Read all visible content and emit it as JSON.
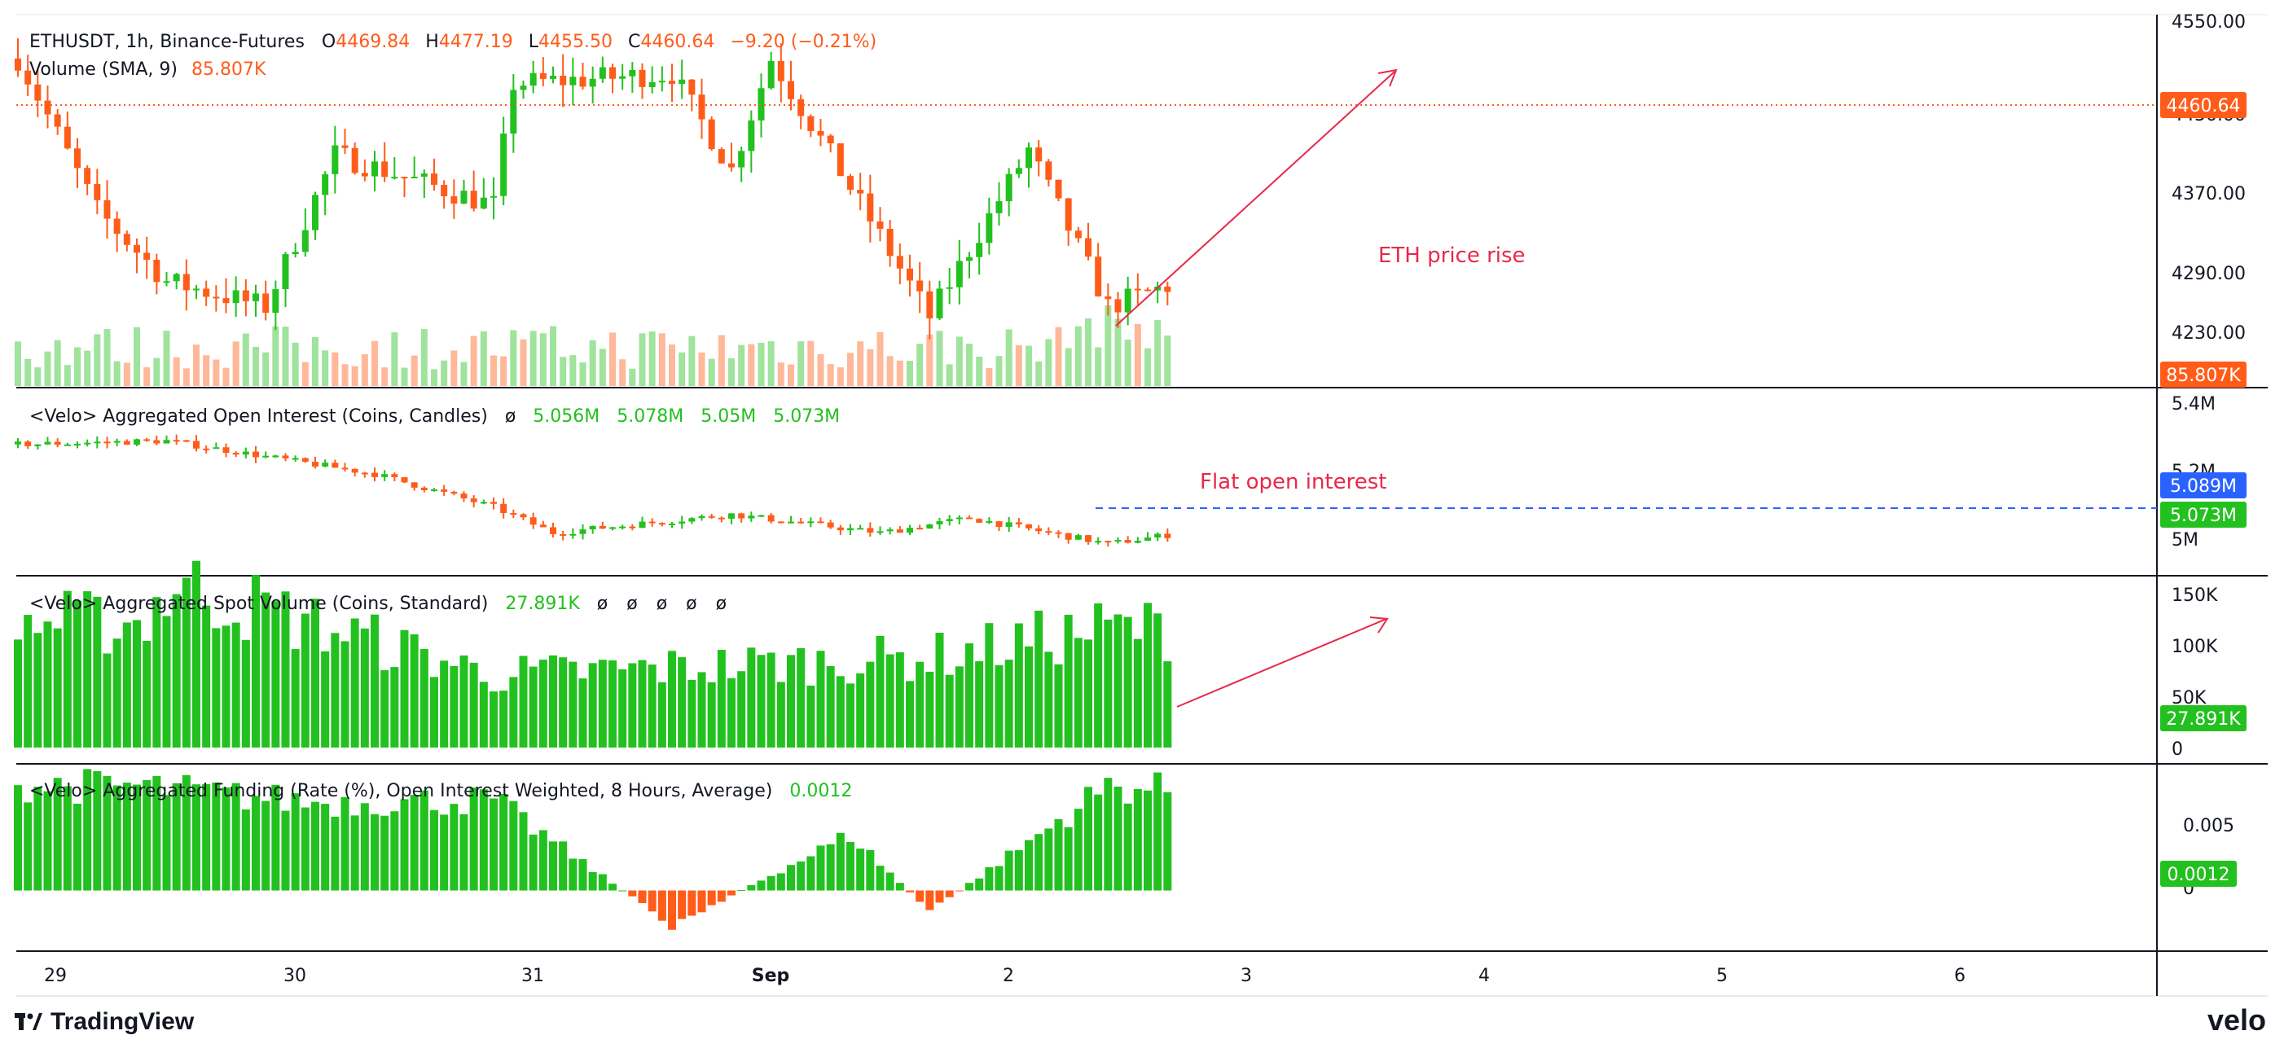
{
  "colors": {
    "up": "#22c11f",
    "down": "#ff5c1a",
    "annotation": "#e8294a",
    "grid": "#131722",
    "text": "#131722",
    "axis_text": "#131722",
    "oi_line_label": "#2962ff"
  },
  "header": {
    "symbol": "ETHUSDT, 1h, Binance-Futures",
    "open_label": "O",
    "open": "4469.84",
    "high_label": "H",
    "high": "4477.19",
    "low_label": "L",
    "low": "4455.50",
    "close_label": "C",
    "close": "4460.64",
    "change": "−9.20 (−0.21%)",
    "volume_label": "Volume (SMA, 9)",
    "volume_value": "85.807K"
  },
  "price_axis": {
    "ticks": [
      "4550.00",
      "4450.00",
      "4370.00",
      "4290.00",
      "4230.00"
    ],
    "current_price_tag": "4460.64",
    "volume_tag": "85.807K"
  },
  "panes": {
    "open_interest": {
      "title": "<Velo> Aggregated Open Interest (Coins, Candles)",
      "empty_marker": "ø",
      "values": [
        "5.056M",
        "5.078M",
        "5.05M",
        "5.073M"
      ],
      "axis_ticks": [
        "5.4M",
        "5.2M",
        "5M"
      ],
      "tag_line": "5.089M",
      "tag_current": "5.073M",
      "annotation": "Flat open interest"
    },
    "spot_volume": {
      "title": "<Velo> Aggregated Spot Volume (Coins, Standard)",
      "value": "27.891K",
      "empties": [
        "ø",
        "ø",
        "ø",
        "ø",
        "ø"
      ],
      "axis_ticks": [
        "150K",
        "100K",
        "50K",
        "0"
      ],
      "tag_current": "27.891K"
    },
    "funding": {
      "title": "<Velo> Aggregated Funding (Rate (%), Open Interest Weighted, 8 Hours, Average)",
      "value": "0.0012",
      "axis_ticks": [
        "0.005",
        "0"
      ],
      "tag_current": "0.0012"
    }
  },
  "annotations": {
    "price_rise": "ETH price rise"
  },
  "time_axis": {
    "labels": [
      "29",
      "30",
      "31",
      "Sep",
      "2",
      "3",
      "4",
      "5",
      "6"
    ]
  },
  "branding": {
    "tradingview": "TradingView",
    "velo": "velo"
  },
  "chart_data": [
    {
      "type": "candlestick",
      "title": "ETHUSDT, 1h, Binance-Futures",
      "x": "hourly candles, Aug 29 – Sep 3",
      "keypoints_close": [
        {
          "t": "Aug 29 00:00",
          "price": 4520
        },
        {
          "t": "Aug 29 08:00",
          "price": 4370
        },
        {
          "t": "Aug 29 15:00",
          "price": 4300
        },
        {
          "t": "Aug 30 01:00",
          "price": 4275
        },
        {
          "t": "Aug 30 08:00",
          "price": 4425
        },
        {
          "t": "Aug 31 00:00",
          "price": 4375
        },
        {
          "t": "Aug 31 02:00",
          "price": 4495
        },
        {
          "t": "Aug 31 18:00",
          "price": 4505
        },
        {
          "t": "Sep 1 00:00",
          "price": 4410
        },
        {
          "t": "Sep 1 04:00",
          "price": 4520
        },
        {
          "t": "Sep 1 20:00",
          "price": 4265
        },
        {
          "t": "Sep 2 06:00",
          "price": 4430
        },
        {
          "t": "Sep 2 14:00",
          "price": 4275
        },
        {
          "t": "Sep 3 06:00",
          "price": 4330
        },
        {
          "t": "Sep 3 14:00",
          "price": 4365
        },
        {
          "t": "Sep 3 18:00",
          "price": 4480
        },
        {
          "t": "Sep 3 20:00",
          "price": 4460.64
        }
      ],
      "ylim": [
        4200,
        4560
      ]
    },
    {
      "type": "candlestick",
      "title": "<Velo> Aggregated Open Interest (Coins, Candles)",
      "unit": "M coins",
      "keypoints": [
        {
          "t": "Aug 29 00:00",
          "v": 5.3
        },
        {
          "t": "Aug 29 15:00",
          "v": 5.31
        },
        {
          "t": "Aug 30 12:00",
          "v": 5.22
        },
        {
          "t": "Aug 31 00:00",
          "v": 5.13
        },
        {
          "t": "Aug 31 06:00",
          "v": 5.06
        },
        {
          "t": "Sep 1 00:00",
          "v": 5.11
        },
        {
          "t": "Sep 1 15:00",
          "v": 5.06
        },
        {
          "t": "Sep 2 00:00",
          "v": 5.1
        },
        {
          "t": "Sep 2 14:00",
          "v": 5.03
        },
        {
          "t": "Sep 3 00:00",
          "v": 5.07
        },
        {
          "t": "Sep 3 20:00",
          "v": 5.073
        }
      ],
      "reference_line": 5.089,
      "ylim": [
        4.95,
        5.45
      ]
    },
    {
      "type": "bar",
      "title": "<Velo> Aggregated Spot Volume (Coins, Standard)",
      "unit": "K coins",
      "keypoints": [
        {
          "t": "Aug 29 12:00",
          "v": 115
        },
        {
          "t": "Aug 29 16:00",
          "v": 150
        },
        {
          "t": "Aug 31 00:00",
          "v": 67
        },
        {
          "t": "Sep 1 20:00",
          "v": 83
        },
        {
          "t": "Sep 2 14:00",
          "v": 110
        },
        {
          "t": "Sep 3 18:00",
          "v": 108
        },
        {
          "t": "Sep 3 20:00",
          "v": 27.891
        }
      ],
      "ylim": [
        0,
        150
      ]
    },
    {
      "type": "bar",
      "title": "<Velo> Aggregated Funding (Rate (%), Open Interest Weighted, 8 Hours, Average)",
      "unit": "%",
      "keypoints": [
        {
          "t": "Aug 29 12:00",
          "v": 0.0075
        },
        {
          "t": "Aug 30 06:00",
          "v": 0.0063
        },
        {
          "t": "Aug 31 00:00",
          "v": 0.0065
        },
        {
          "t": "Aug 31 18:00",
          "v": -0.0025
        },
        {
          "t": "Sep 1 12:00",
          "v": 0.004
        },
        {
          "t": "Sep 1 20:00",
          "v": -0.0015
        },
        {
          "t": "Sep 2 14:00",
          "v": 0.0075
        },
        {
          "t": "Sep 3 18:00",
          "v": 0.0062
        },
        {
          "t": "Sep 3 20:00",
          "v": 0.0012
        }
      ],
      "ylim": [
        -0.004,
        0.0085
      ]
    }
  ]
}
